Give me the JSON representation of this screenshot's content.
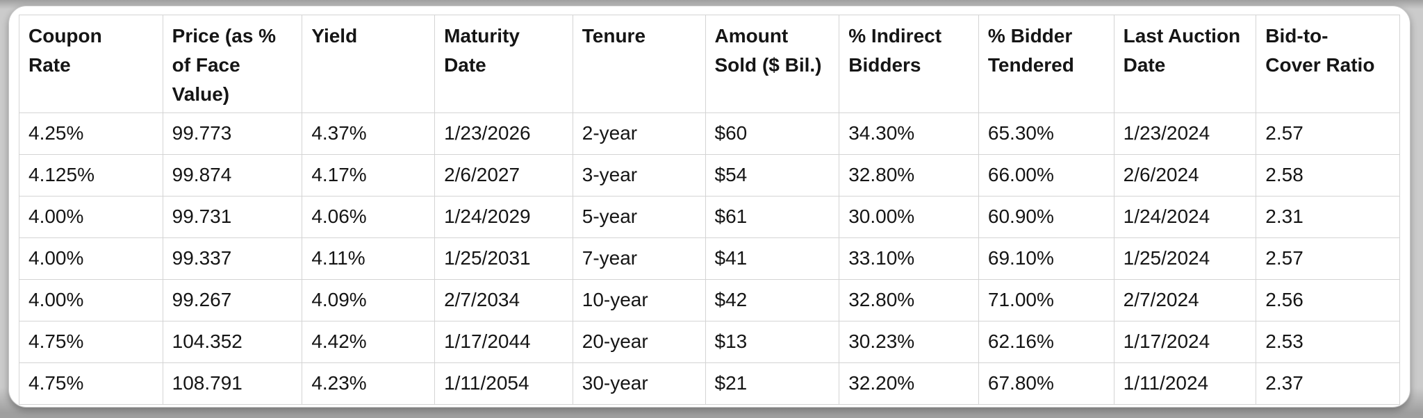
{
  "table": {
    "headers": [
      "Coupon\nRate",
      "Price (as %\nof Face\nValue)",
      "Yield",
      "Maturity\nDate",
      "Tenure",
      "Amount\nSold ($ Bil.)",
      "% Indirect\nBidders",
      "% Bidder\nTendered",
      "Last Auction\nDate",
      "Bid-to-\nCover Ratio"
    ],
    "rows": [
      [
        "4.25%",
        "99.773",
        "4.37%",
        "1/23/2026",
        "2-year",
        "$60",
        "34.30%",
        "65.30%",
        "1/23/2024",
        "2.57"
      ],
      [
        "4.125%",
        "99.874",
        "4.17%",
        "2/6/2027",
        "3-year",
        "$54",
        "32.80%",
        "66.00%",
        "2/6/2024",
        "2.58"
      ],
      [
        "4.00%",
        "99.731",
        "4.06%",
        "1/24/2029",
        "5-year",
        "$61",
        "30.00%",
        "60.90%",
        "1/24/2024",
        "2.31"
      ],
      [
        "4.00%",
        "99.337",
        "4.11%",
        "1/25/2031",
        "7-year",
        "$41",
        "33.10%",
        "69.10%",
        "1/25/2024",
        "2.57"
      ],
      [
        "4.00%",
        "99.267",
        "4.09%",
        "2/7/2034",
        "10-year",
        "$42",
        "32.80%",
        "71.00%",
        "2/7/2024",
        "2.56"
      ],
      [
        "4.75%",
        "104.352",
        "4.42%",
        "1/17/2044",
        "20-year",
        "$13",
        "30.23%",
        "62.16%",
        "1/17/2024",
        "2.53"
      ],
      [
        "4.75%",
        "108.791",
        "4.23%",
        "1/11/2054",
        "30-year",
        "$21",
        "32.20%",
        "67.80%",
        "1/11/2024",
        "2.37"
      ]
    ]
  },
  "colors": {
    "page_bg": "#cbcbcb",
    "page_edge": "#9f9f9f",
    "card_bg": "#ffffff",
    "grid_line": "#d4d4d4",
    "text": "#151515"
  }
}
